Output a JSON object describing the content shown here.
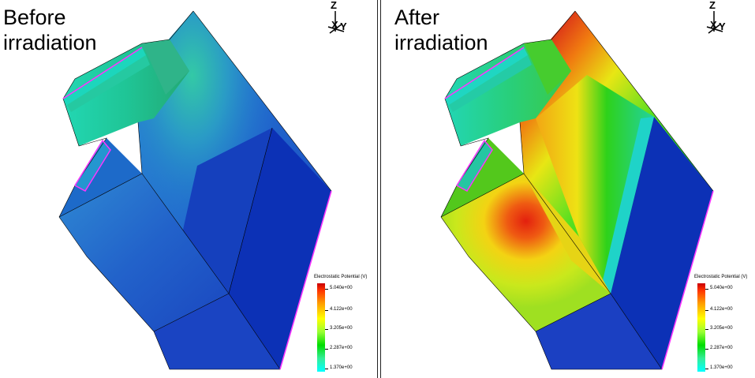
{
  "panels": [
    {
      "title": "Before\nirradiation",
      "state": "before",
      "colors": {
        "top_face": "#1f61c9",
        "front_face": "#1a44c2",
        "right_face": "#0b2fb5",
        "fin": "#22d6a8",
        "edge_highlight": "#ff33ff"
      }
    },
    {
      "title": "After\nirradiation",
      "state": "after",
      "colors": {
        "hotspot": "#e62e10",
        "mid": "#f2e400",
        "green": "#1ad21a",
        "right_face": "#0b2fb5",
        "edge_highlight": "#ff33ff"
      }
    }
  ],
  "axes": {
    "z": "Z",
    "x": "X",
    "y": "Y"
  },
  "legend": {
    "title": "Electrostatic Potential (V)",
    "ticks": [
      "5.040e+00",
      "4.122e+00",
      "3.205e+00",
      "2.287e+00",
      "1.370e+00"
    ]
  }
}
